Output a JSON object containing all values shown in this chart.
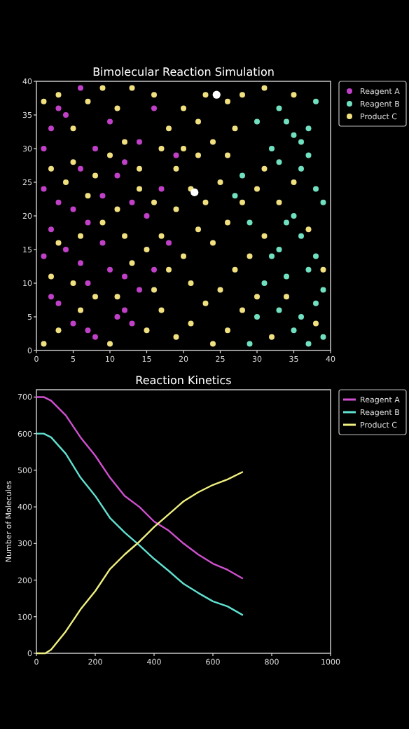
{
  "chart_data": [
    {
      "type": "scatter",
      "title": "Bimolecular Reaction Simulation",
      "xlim": [
        0,
        40
      ],
      "ylim": [
        0,
        40
      ],
      "xticks": [
        0,
        5,
        10,
        15,
        20,
        25,
        30,
        35,
        40
      ],
      "yticks": [
        0,
        5,
        10,
        15,
        20,
        25,
        30,
        35,
        40
      ],
      "legend": "top right",
      "marker": "circle",
      "series": [
        {
          "name": "Reagent A",
          "color": "#c040c8",
          "x": [
            1,
            2,
            3,
            4,
            6,
            8,
            10,
            12,
            14,
            16,
            1,
            3,
            5,
            2,
            7,
            9,
            11,
            13,
            15,
            1,
            4,
            6,
            7,
            10,
            12,
            14,
            16,
            2,
            3,
            5,
            7,
            8,
            11,
            12,
            13,
            18,
            17,
            19,
            6,
            9
          ],
          "values": [
            30,
            33,
            36,
            35,
            39,
            30,
            34,
            28,
            31,
            36,
            24,
            22,
            21,
            18,
            19,
            23,
            26,
            22,
            20,
            14,
            15,
            13,
            10,
            12,
            11,
            9,
            12,
            8,
            7,
            4,
            3,
            2,
            5,
            6,
            4,
            16,
            24,
            29,
            27,
            16
          ]
        },
        {
          "name": "Reagent B",
          "color": "#70e0c0",
          "x": [
            33,
            34,
            35,
            36,
            37,
            38,
            30,
            32,
            33,
            36,
            38,
            39,
            35,
            34,
            36,
            33,
            32,
            37,
            39,
            38,
            36,
            35,
            37,
            39,
            33,
            31,
            29,
            28,
            27,
            30,
            29,
            34,
            38,
            37
          ],
          "values": [
            36,
            34,
            32,
            31,
            33,
            37,
            34,
            30,
            28,
            27,
            24,
            22,
            20,
            19,
            17,
            15,
            14,
            12,
            9,
            7,
            5,
            3,
            1,
            2,
            6,
            10,
            19,
            26,
            23,
            5,
            1,
            11,
            14,
            29
          ]
        },
        {
          "name": "Product C",
          "color": "#f0e080",
          "x": [
            1,
            3,
            5,
            7,
            9,
            11,
            13,
            16,
            18,
            20,
            22,
            24,
            26,
            28,
            31,
            27,
            22,
            19,
            17,
            14,
            12,
            10,
            8,
            5,
            2,
            4,
            7,
            11,
            14,
            16,
            19,
            21,
            23,
            25,
            28,
            30,
            26,
            24,
            22,
            20,
            17,
            15,
            12,
            9,
            6,
            3,
            2,
            5,
            8,
            11,
            13,
            16,
            18,
            21,
            23,
            25,
            27,
            29,
            31,
            30,
            28,
            26,
            24,
            21,
            19,
            17,
            15,
            10,
            6,
            3,
            1,
            33,
            35,
            37,
            39,
            34,
            32,
            38,
            35,
            31,
            26,
            20,
            23
          ],
          "values": [
            37,
            38,
            33,
            37,
            39,
            36,
            39,
            38,
            33,
            36,
            34,
            31,
            37,
            38,
            39,
            33,
            29,
            27,
            30,
            27,
            31,
            29,
            26,
            28,
            27,
            25,
            23,
            21,
            24,
            22,
            21,
            24,
            22,
            25,
            22,
            24,
            19,
            16,
            18,
            14,
            17,
            15,
            17,
            19,
            17,
            16,
            11,
            10,
            8,
            8,
            13,
            9,
            12,
            10,
            7,
            9,
            12,
            14,
            17,
            8,
            6,
            3,
            1,
            4,
            2,
            6,
            3,
            1,
            6,
            3,
            1,
            22,
            25,
            18,
            12,
            8,
            2,
            4,
            38,
            27,
            29,
            30,
            38
          ]
        },
        {
          "color": "#ffffff",
          "x": [
            24.5,
            21.5
          ],
          "values": [
            38,
            23.5
          ]
        }
      ]
    },
    {
      "type": "line",
      "title": "Reaction Kinetics",
      "ylabel": "Number of Molecules",
      "xlim": [
        0,
        1000
      ],
      "ylim": [
        0,
        720
      ],
      "xticks": [
        0,
        200,
        400,
        600,
        800,
        1000
      ],
      "yticks": [
        0,
        100,
        200,
        300,
        400,
        500,
        600,
        700
      ],
      "legend": "top right",
      "series": [
        {
          "name": "Reagent A",
          "color": "#d050d0",
          "x": [
            0,
            25,
            50,
            100,
            150,
            200,
            250,
            300,
            350,
            400,
            450,
            500,
            550,
            600,
            650,
            700
          ],
          "values": [
            700,
            700,
            690,
            650,
            590,
            540,
            480,
            430,
            400,
            360,
            335,
            300,
            270,
            245,
            228,
            205
          ]
        },
        {
          "name": "Reagent B",
          "color": "#60e0d0",
          "x": [
            0,
            25,
            50,
            100,
            150,
            200,
            250,
            300,
            350,
            400,
            450,
            500,
            550,
            600,
            650,
            700
          ],
          "values": [
            600,
            600,
            590,
            545,
            480,
            430,
            370,
            330,
            295,
            258,
            225,
            190,
            165,
            142,
            128,
            105
          ]
        },
        {
          "name": "Product C",
          "color": "#f0f080",
          "x": [
            0,
            30,
            50,
            100,
            150,
            200,
            250,
            300,
            350,
            400,
            450,
            500,
            550,
            600,
            650,
            700
          ],
          "values": [
            0,
            0,
            10,
            60,
            120,
            170,
            230,
            270,
            305,
            345,
            380,
            415,
            440,
            460,
            475,
            495
          ]
        }
      ]
    }
  ]
}
